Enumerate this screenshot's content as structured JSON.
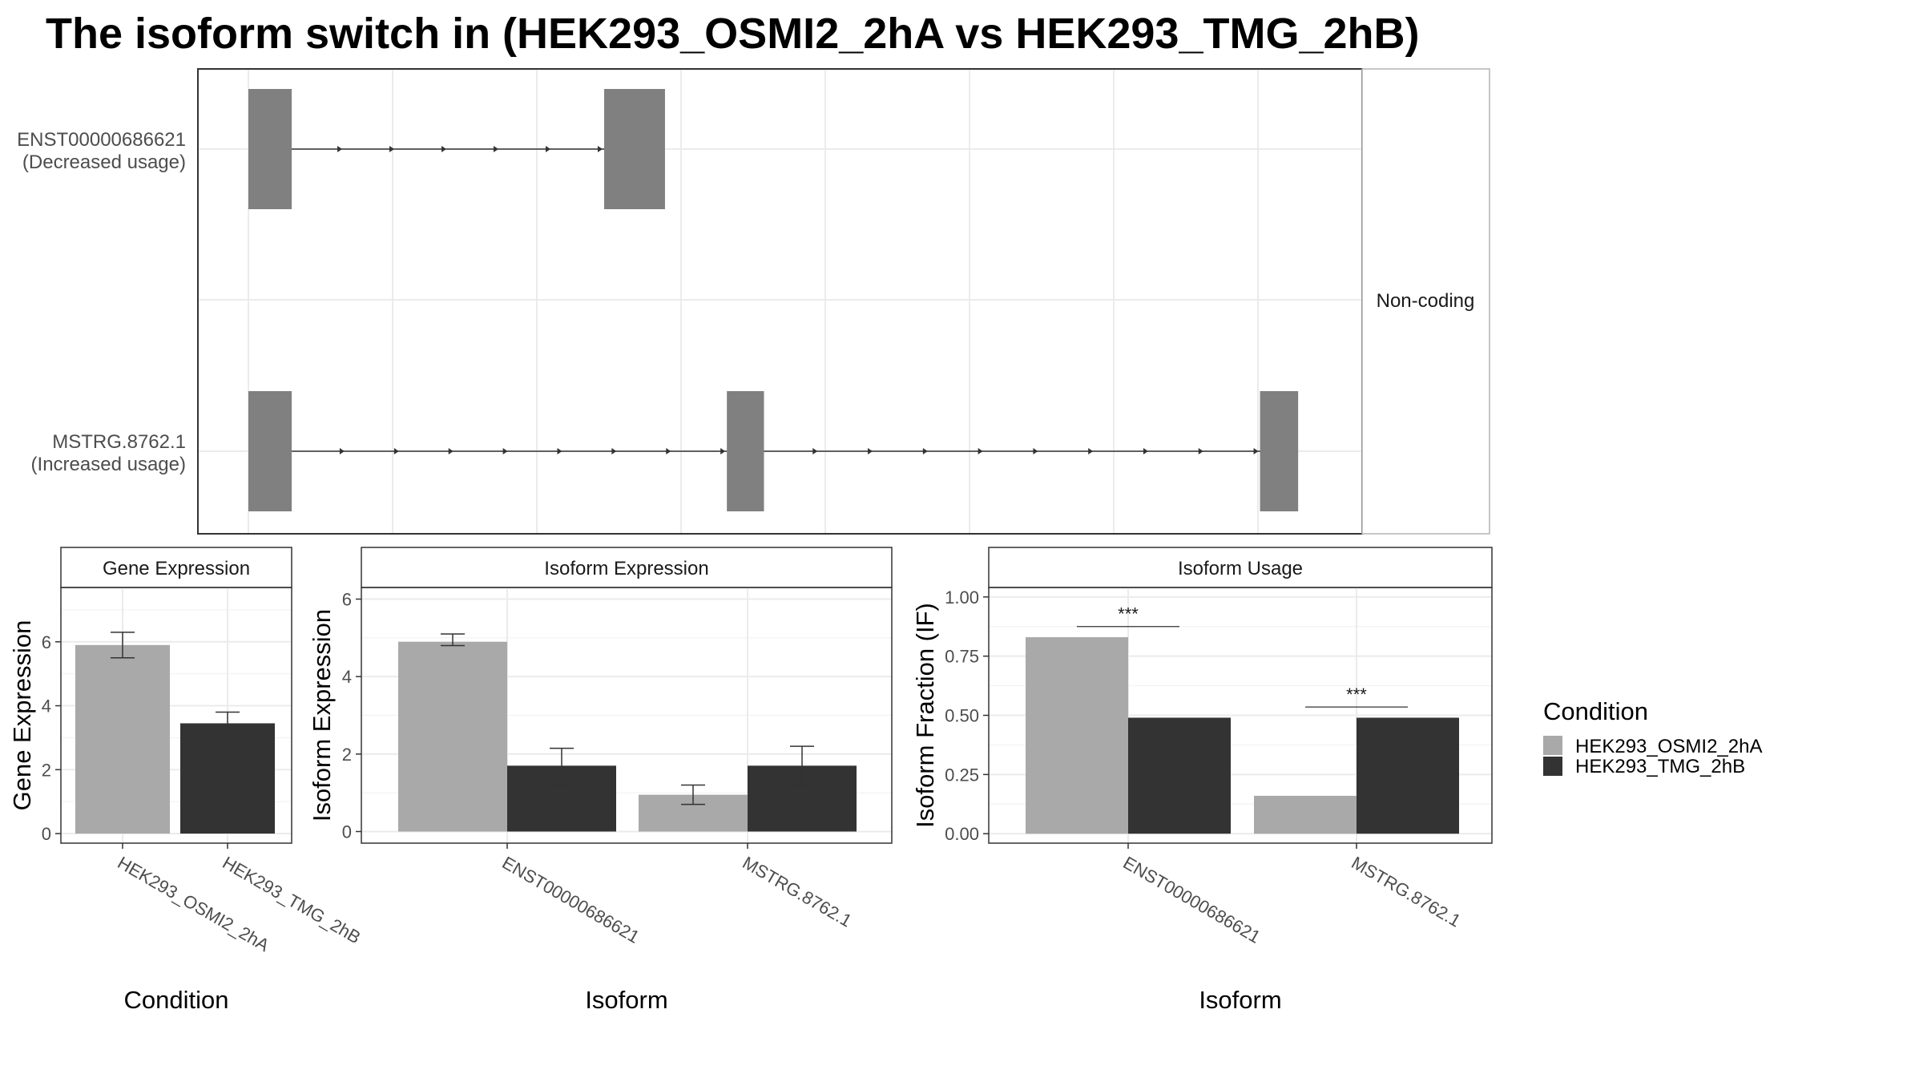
{
  "title": "The isoform switch in  (HEK293_OSMI2_2hA vs HEK293_TMG_2hB)",
  "colors": {
    "cond_a": "#a9a9a9",
    "cond_b": "#333333",
    "exon": "#808080",
    "grid": "#ebebeb",
    "strip_bg": "#ffffff"
  },
  "legend": {
    "title": "Condition",
    "items": [
      {
        "label": "HEK293_OSMI2_2hA",
        "color": "#a9a9a9"
      },
      {
        "label": "HEK293_TMG_2hB",
        "color": "#333333"
      }
    ]
  },
  "structure": {
    "facet_label": "Non-coding",
    "transcripts": [
      {
        "name": "ENST00000686621",
        "usage": "(Decreased usage)",
        "exons": [
          [
            0.0,
            0.042
          ],
          [
            0.345,
            0.404
          ]
        ]
      },
      {
        "name": "MSTRG.8762.1",
        "usage": "(Increased usage)",
        "exons": [
          [
            0.0,
            0.042
          ],
          [
            0.464,
            0.5
          ],
          [
            0.981,
            1.018
          ]
        ]
      }
    ]
  },
  "chart_data": [
    {
      "type": "bar",
      "title": "Gene Expression",
      "xlabel": "Condition",
      "ylabel": "Gene Expression",
      "categories": [
        "HEK293_OSMI2_2hA",
        "HEK293_TMG_2hB"
      ],
      "values": [
        5.9,
        3.45
      ],
      "errors": [
        [
          5.5,
          6.3
        ],
        [
          3.1,
          3.8
        ]
      ],
      "yticks": [
        "0",
        "2",
        "4",
        "6"
      ],
      "ylim": [
        -0.3,
        7.7
      ]
    },
    {
      "type": "bar",
      "title": "Isoform Expression",
      "xlabel": "Isoform",
      "ylabel": "Isoform Expression",
      "categories": [
        "ENST00000686621",
        "MSTRG.8762.1"
      ],
      "series": [
        {
          "name": "HEK293_OSMI2_2hA",
          "values": [
            4.9,
            0.95
          ],
          "errors": [
            [
              4.8,
              5.1
            ],
            [
              0.7,
              1.2
            ]
          ]
        },
        {
          "name": "HEK293_TMG_2hB",
          "values": [
            1.7,
            1.7
          ],
          "errors": [
            [
              1.2,
              2.15
            ],
            [
              1.2,
              2.2
            ]
          ]
        }
      ],
      "yticks": [
        "0",
        "2",
        "4",
        "6"
      ],
      "ylim": [
        -0.3,
        6.3
      ]
    },
    {
      "type": "bar",
      "title": "Isoform Usage",
      "xlabel": "Isoform",
      "ylabel": "Isoform Fraction (IF)",
      "categories": [
        "ENST00000686621",
        "MSTRG.8762.1"
      ],
      "series": [
        {
          "name": "HEK293_OSMI2_2hA",
          "values": [
            0.83,
            0.16
          ]
        },
        {
          "name": "HEK293_TMG_2hB",
          "values": [
            0.49,
            0.49
          ]
        }
      ],
      "significance": [
        "***",
        "***"
      ],
      "sig_levels": [
        0.875,
        0.535
      ],
      "yticks": [
        "0.00",
        "0.25",
        "0.50",
        "0.75",
        "1.00"
      ],
      "ylim": [
        -0.04,
        1.04
      ]
    }
  ]
}
